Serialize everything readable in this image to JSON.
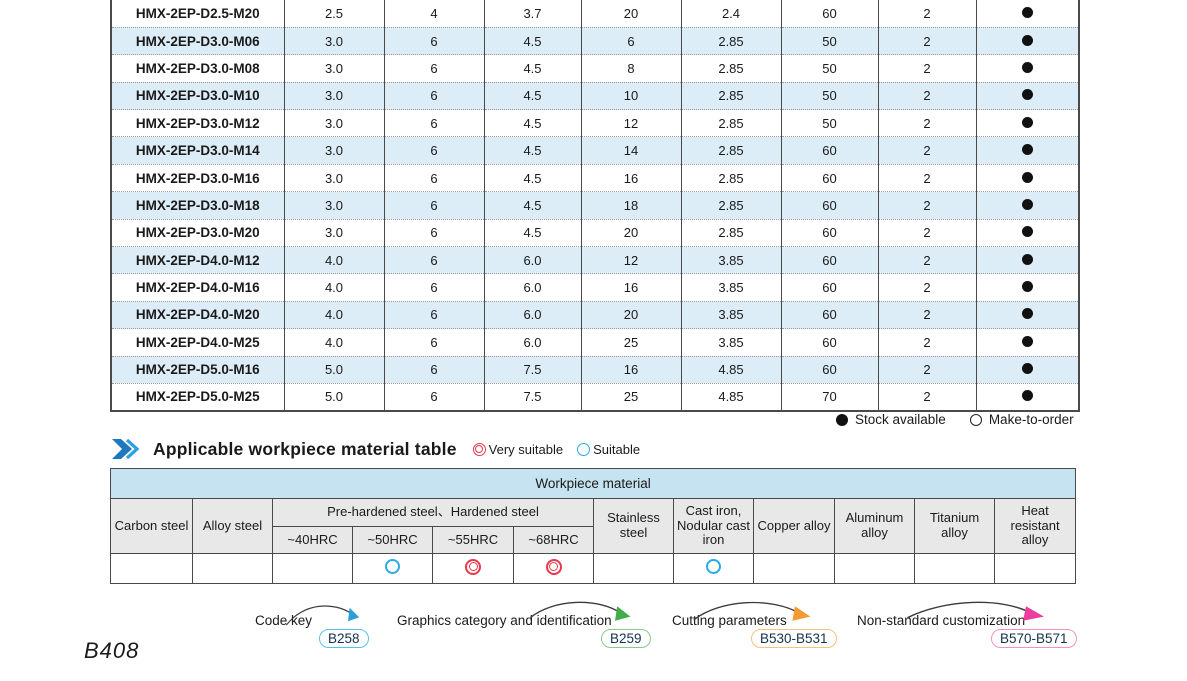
{
  "spec_table": {
    "rows": [
      {
        "model": "HMX-2EP-D2.5-M20",
        "values": [
          "2.5",
          "4",
          "3.7",
          "20",
          "2.4",
          "60",
          "2"
        ],
        "stock": "available"
      },
      {
        "model": "HMX-2EP-D3.0-M06",
        "values": [
          "3.0",
          "6",
          "4.5",
          "6",
          "2.85",
          "50",
          "2"
        ],
        "stock": "available"
      },
      {
        "model": "HMX-2EP-D3.0-M08",
        "values": [
          "3.0",
          "6",
          "4.5",
          "8",
          "2.85",
          "50",
          "2"
        ],
        "stock": "available"
      },
      {
        "model": "HMX-2EP-D3.0-M10",
        "values": [
          "3.0",
          "6",
          "4.5",
          "10",
          "2.85",
          "50",
          "2"
        ],
        "stock": "available"
      },
      {
        "model": "HMX-2EP-D3.0-M12",
        "values": [
          "3.0",
          "6",
          "4.5",
          "12",
          "2.85",
          "50",
          "2"
        ],
        "stock": "available"
      },
      {
        "model": "HMX-2EP-D3.0-M14",
        "values": [
          "3.0",
          "6",
          "4.5",
          "14",
          "2.85",
          "60",
          "2"
        ],
        "stock": "available"
      },
      {
        "model": "HMX-2EP-D3.0-M16",
        "values": [
          "3.0",
          "6",
          "4.5",
          "16",
          "2.85",
          "60",
          "2"
        ],
        "stock": "available"
      },
      {
        "model": "HMX-2EP-D3.0-M18",
        "values": [
          "3.0",
          "6",
          "4.5",
          "18",
          "2.85",
          "60",
          "2"
        ],
        "stock": "available"
      },
      {
        "model": "HMX-2EP-D3.0-M20",
        "values": [
          "3.0",
          "6",
          "4.5",
          "20",
          "2.85",
          "60",
          "2"
        ],
        "stock": "available"
      },
      {
        "model": "HMX-2EP-D4.0-M12",
        "values": [
          "4.0",
          "6",
          "6.0",
          "12",
          "3.85",
          "60",
          "2"
        ],
        "stock": "available"
      },
      {
        "model": "HMX-2EP-D4.0-M16",
        "values": [
          "4.0",
          "6",
          "6.0",
          "16",
          "3.85",
          "60",
          "2"
        ],
        "stock": "available"
      },
      {
        "model": "HMX-2EP-D4.0-M20",
        "values": [
          "4.0",
          "6",
          "6.0",
          "20",
          "3.85",
          "60",
          "2"
        ],
        "stock": "available"
      },
      {
        "model": "HMX-2EP-D4.0-M25",
        "values": [
          "4.0",
          "6",
          "6.0",
          "25",
          "3.85",
          "60",
          "2"
        ],
        "stock": "available"
      },
      {
        "model": "HMX-2EP-D5.0-M16",
        "values": [
          "5.0",
          "6",
          "7.5",
          "16",
          "4.85",
          "60",
          "2"
        ],
        "stock": "available"
      },
      {
        "model": "HMX-2EP-D5.0-M25",
        "values": [
          "5.0",
          "6",
          "7.5",
          "25",
          "4.85",
          "70",
          "2"
        ],
        "stock": "available"
      }
    ]
  },
  "stock_legend": {
    "available_label": "Stock available",
    "make_to_order_label": "Make-to-order"
  },
  "section": {
    "title": "Applicable workpiece material table",
    "very_suitable_label": "Very suitable",
    "suitable_label": "Suitable",
    "very_suitable_color": "#e8374a",
    "suitable_color": "#29abe2"
  },
  "material_table": {
    "title": "Workpiece material",
    "columns": {
      "carbon": "Carbon steel",
      "alloy": "Alloy steel",
      "hardened_group": "Pre-hardened steel、Hardened steel",
      "hrc40": "~40HRC",
      "hrc50": "~50HRC",
      "hrc55": "~55HRC",
      "hrc68": "~68HRC",
      "stainless": "Stainless steel",
      "cast_iron": "Cast iron, Nodular cast iron",
      "copper": "Copper alloy",
      "aluminum": "Aluminum alloy",
      "titanium": "Titanium alloy",
      "heat": "Heat resistant alloy"
    },
    "ratings": {
      "carbon": "",
      "alloy": "",
      "hrc40": "",
      "hrc50": "suitable",
      "hrc55": "very_suitable",
      "hrc68": "very_suitable",
      "stainless": "",
      "cast_iron": "suitable",
      "copper": "",
      "aluminum": "",
      "titanium": "",
      "heat": ""
    }
  },
  "references": [
    {
      "label": "Code key",
      "page": "B258",
      "badge_color": "#53c3e6",
      "arrow_color": "#2a9fd8"
    },
    {
      "label": "Graphics category and identification",
      "page": "B259",
      "badge_color": "#85cb8e",
      "arrow_color": "#3fae49"
    },
    {
      "label": "Cutting parameters",
      "page": "B530-B531",
      "badge_color": "#f6c27c",
      "arrow_color": "#f59a2f"
    },
    {
      "label": "Non-standard customization",
      "page": "B570-B571",
      "badge_color": "#f591c2",
      "arrow_color": "#ec3f9d"
    }
  ],
  "page_number": "B408",
  "colors": {
    "row_alt": "#dcedf8",
    "material_header_blue": "#c5e3f0",
    "header_grey": "#e8e8e8",
    "chevron_blue": "#1e78c0"
  }
}
